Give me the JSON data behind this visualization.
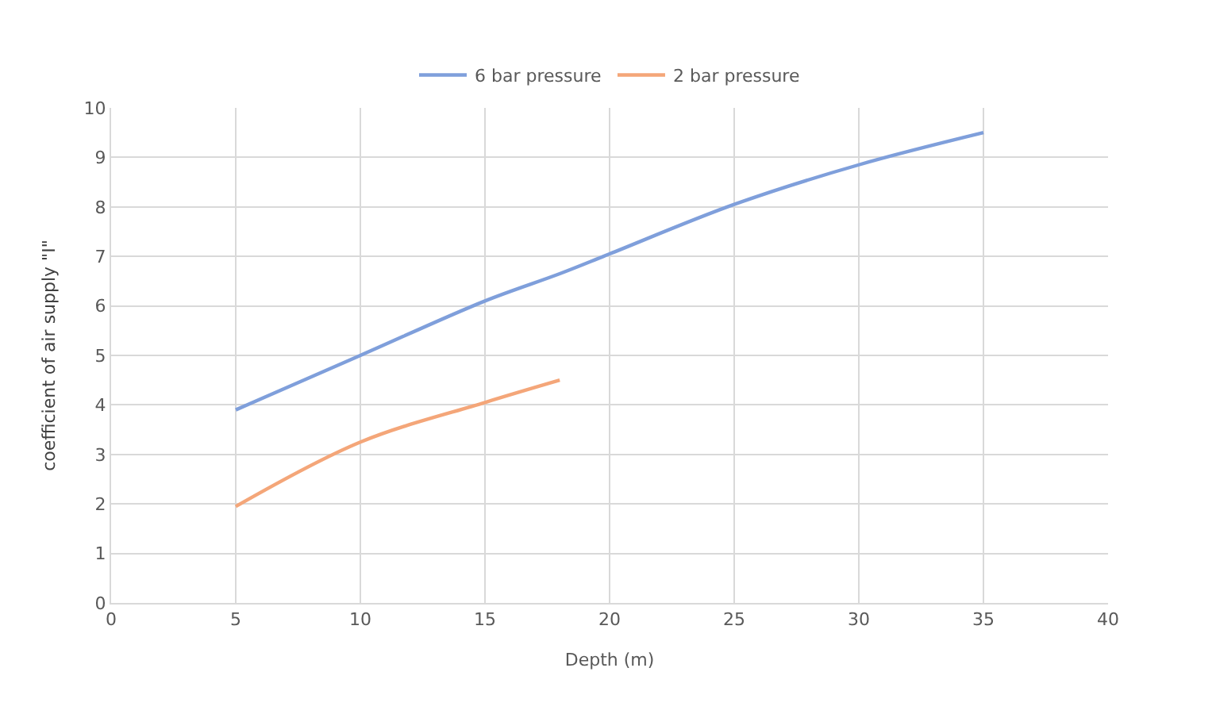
{
  "chart_data": {
    "type": "line",
    "xlabel": "Depth (m)",
    "ylabel": "coefficient of air supply \"I\"",
    "series": [
      {
        "name": "6 bar pressure",
        "color": "#7f9fdb",
        "x": [
          5,
          10,
          15,
          18,
          20,
          25,
          30,
          35
        ],
        "values": [
          3.9,
          5.0,
          6.1,
          6.65,
          7.05,
          8.05,
          8.85,
          9.5
        ]
      },
      {
        "name": "2 bar pressure",
        "color": "#f4a679",
        "x": [
          5,
          10,
          15,
          18
        ],
        "values": [
          1.95,
          3.25,
          4.05,
          4.5
        ]
      }
    ],
    "xlim": [
      0,
      40
    ],
    "xticks": [
      0,
      5,
      10,
      15,
      20,
      25,
      30,
      35,
      40
    ],
    "ylim": [
      0,
      10
    ],
    "yticks": [
      0,
      1,
      2,
      3,
      4,
      5,
      6,
      7,
      8,
      9,
      10
    ],
    "grid": true,
    "legend": "top",
    "marker": "none",
    "line_style": "solid"
  }
}
